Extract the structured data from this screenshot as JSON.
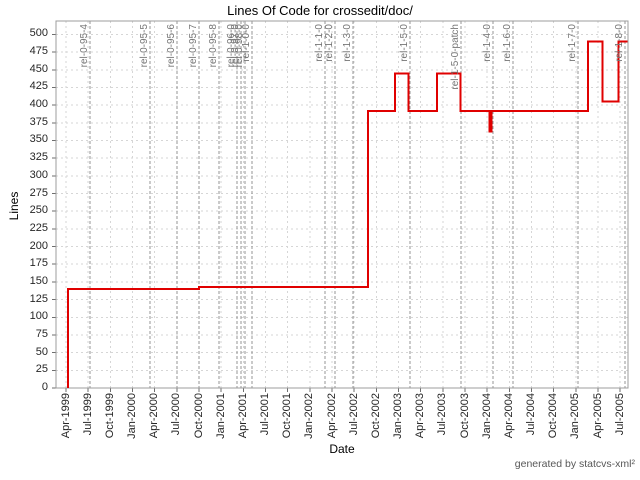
{
  "page": {
    "footer": "generated by statcvs-xml²"
  },
  "colors": {
    "line": "#e00000",
    "grid": "#d6d6d6",
    "release_line": "#969696",
    "frame": "#9c9c9c",
    "tick": "#6e6e6e",
    "text": "#262626",
    "release_text": "#757575",
    "footer_text": "#575757",
    "background": "#ffffff"
  },
  "chart_data": {
    "type": "line",
    "title": "Lines Of Code for crossedit/doc/",
    "xlabel": "Date",
    "ylabel": "Lines",
    "ylim": [
      0,
      500
    ],
    "y_tick_step": 25,
    "grid": true,
    "legend_position": "none",
    "x_tick_labels": [
      "Apr-1999",
      "Jul-1999",
      "Oct-1999",
      "Jan-2000",
      "Apr-2000",
      "Jul-2000",
      "Oct-2000",
      "Jan-2001",
      "Apr-2001",
      "Jul-2001",
      "Oct-2001",
      "Jan-2002",
      "Apr-2002",
      "Jul-2002",
      "Oct-2002",
      "Jan-2003",
      "Apr-2003",
      "Jul-2003",
      "Oct-2003",
      "Jan-2004",
      "Apr-2004",
      "Jul-2004",
      "Oct-2004",
      "Jan-2005",
      "Apr-2005",
      "Jul-2005"
    ],
    "series_name": "Lines of code (step)",
    "start_date": "1999-04-10",
    "initial_value": 0,
    "end_date": "2005-07-31",
    "step_points": [
      {
        "date": "1999-04-10",
        "loc": 140
      },
      {
        "date": "2000-10-01",
        "loc": 143
      },
      {
        "date": "2002-08-28",
        "loc": 392
      },
      {
        "date": "2002-12-18",
        "loc": 445
      },
      {
        "date": "2003-02-12",
        "loc": 392
      },
      {
        "date": "2003-06-08",
        "loc": 445
      },
      {
        "date": "2003-09-12",
        "loc": 392
      },
      {
        "date": "2004-01-10",
        "loc": 363
      },
      {
        "date": "2004-01-18",
        "loc": 392
      },
      {
        "date": "2005-02-20",
        "loc": 490
      },
      {
        "date": "2005-04-20",
        "loc": 405
      },
      {
        "date": "2005-06-24",
        "loc": 490
      }
    ],
    "releases": [
      {
        "label": "rel-0-95-4",
        "date": "1999-07-08"
      },
      {
        "label": "rel-0-95-5",
        "date": "2000-03-12"
      },
      {
        "label": "rel-0-95-6",
        "date": "2000-07-01"
      },
      {
        "label": "rel-0-95-7",
        "date": "2000-10-01"
      },
      {
        "label": "rel-0-95-8",
        "date": "2000-12-22"
      },
      {
        "label": "rel-0-96-0",
        "date": "2001-03-05"
      },
      {
        "label": "rel-0-97-0",
        "date": "2001-03-21"
      },
      {
        "label": "rel-0-98-0",
        "date": "2001-04-07"
      },
      {
        "label": "rel-1-0-0",
        "date": "2001-05-06"
      },
      {
        "label": "rel-1-1-0",
        "date": "2002-03-02"
      },
      {
        "label": "rel-1-2-0",
        "date": "2002-04-13"
      },
      {
        "label": "rel-1-3-0",
        "date": "2002-06-26"
      },
      {
        "label": "rel-1-5-0",
        "date": "2003-02-17"
      },
      {
        "label": "rel-1-5-0-patch",
        "date": "2003-09-15"
      },
      {
        "label": "rel-1-4-0",
        "date": "2004-01-25"
      },
      {
        "label": "rel-1-6-0",
        "date": "2004-04-16"
      },
      {
        "label": "rel-1-7-0",
        "date": "2005-01-10"
      },
      {
        "label": "rel-1-8-0",
        "date": "2005-07-21"
      }
    ]
  }
}
